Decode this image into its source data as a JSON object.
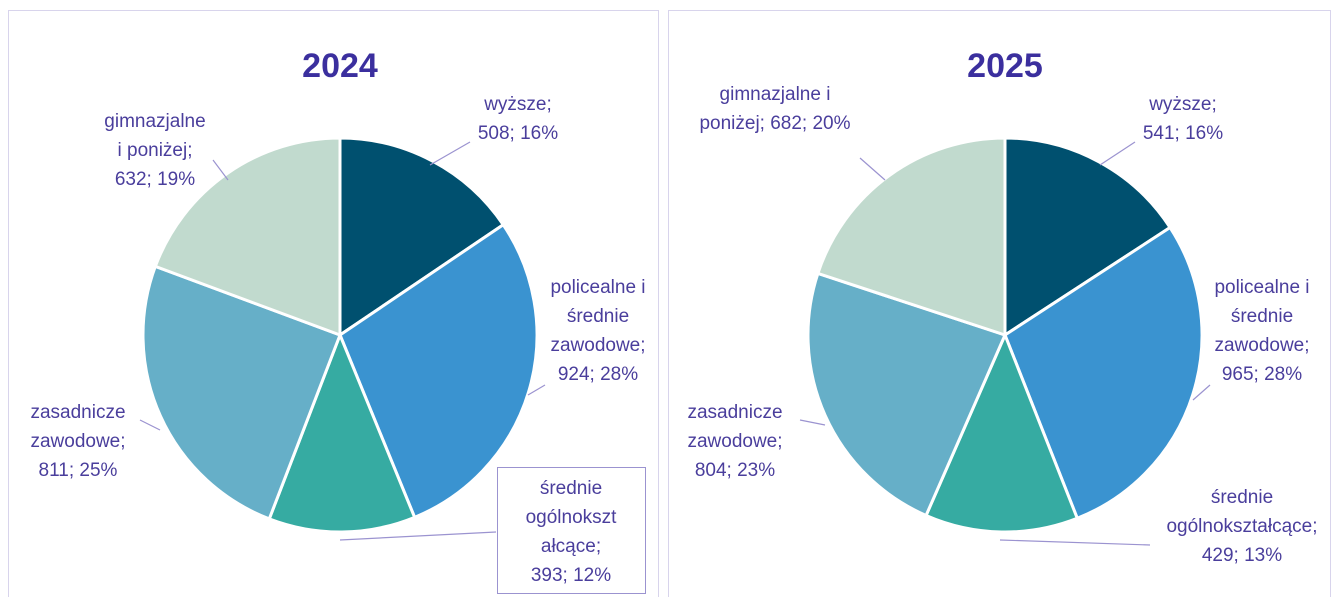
{
  "chart_data": [
    {
      "type": "pie",
      "title": "2024",
      "values": [
        508,
        924,
        393,
        811,
        632
      ],
      "value_labels": [
        [
          "wyższe;",
          "508; 16%"
        ],
        [
          "policealne i",
          "średnie",
          "zawodowe;",
          "924; 28%"
        ],
        [
          "średnie",
          "ogólnokszt",
          "ałcące;",
          "393; 12%"
        ],
        [
          "zasadnicze",
          "zawodowe;",
          "811; 25%"
        ],
        [
          "gimnazjalne",
          "i poniżej;",
          "632; 19%"
        ]
      ],
      "colors": [
        "#00506f",
        "#3a93d0",
        "#36aba2",
        "#66afc8",
        "#c1dace"
      ]
    },
    {
      "type": "pie",
      "title": "2025",
      "values": [
        541,
        965,
        429,
        804,
        682
      ],
      "value_labels": [
        [
          "wyższe;",
          "541; 16%"
        ],
        [
          "policealne i",
          "średnie",
          "zawodowe;",
          "965; 28%"
        ],
        [
          "średnie",
          "ogólnokształcące;",
          "429; 13%"
        ],
        [
          "zasadnicze",
          "zawodowe;",
          "804; 23%"
        ],
        [
          "gimnazjalne i",
          "poniżej; 682; 20%"
        ]
      ],
      "colors": [
        "#00506f",
        "#3a93d0",
        "#36aba2",
        "#66afc8",
        "#c1dace"
      ]
    }
  ]
}
